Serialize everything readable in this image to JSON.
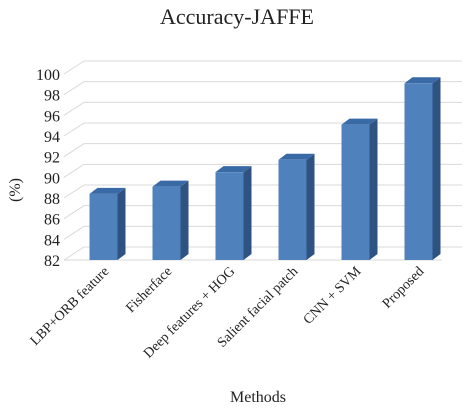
{
  "chart_data": {
    "type": "bar",
    "style": "3d-column",
    "title": "Accuracy-JAFFE",
    "xlabel": "Methods",
    "ylabel": "(%)",
    "categories": [
      "LBP+ORB feature",
      "Fisherface",
      "Deep features + HOG",
      "Salient facial patch",
      "CNN + SVM",
      "Proposed"
    ],
    "values": [
      88.4,
      89.1,
      90.5,
      91.7,
      95.1,
      99.1
    ],
    "ylim": [
      82,
      100
    ],
    "yticks": [
      "82",
      "84",
      "86",
      "88",
      "90",
      "92",
      "94",
      "96",
      "98",
      "100"
    ],
    "grid": true,
    "legend": "none",
    "colors": {
      "front": "#4f81bd",
      "top": "#3a6aa6",
      "side": "#2e5282"
    }
  }
}
